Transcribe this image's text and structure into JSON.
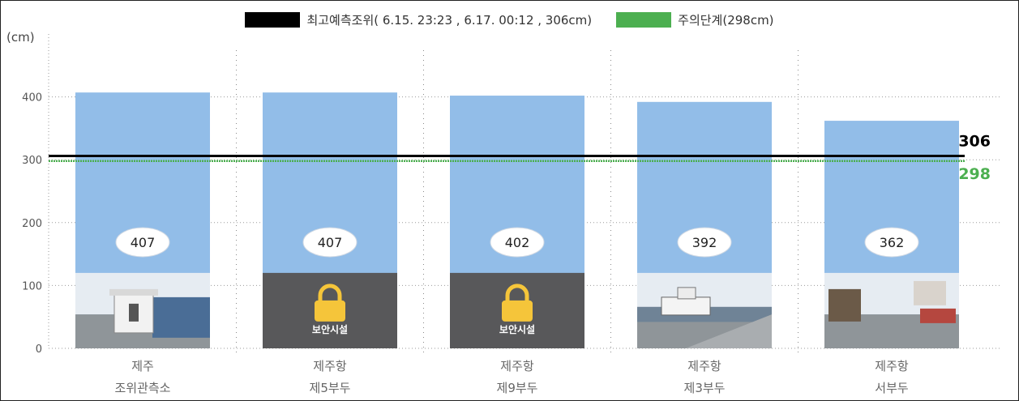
{
  "legend": {
    "max_label": "최고예측조위( 6.15. 23:23 , 6.17. 00:12 , 306cm)",
    "alert_label": "주의단계(298cm)",
    "max_color": "#000000",
    "alert_color": "#4caf50"
  },
  "axis_unit": "(cm)",
  "bar_color": "#92bde8",
  "secure_box_color": "#58585a",
  "lock_color": "#f5c53a",
  "chart_data": {
    "type": "bar",
    "categories": [
      [
        "제주",
        "조위관측소"
      ],
      [
        "제주항",
        "제5부두"
      ],
      [
        "제주항",
        "제9부두"
      ],
      [
        "제주항",
        "제3부두"
      ],
      [
        "제주항",
        "서부두"
      ]
    ],
    "values": [
      407,
      407,
      402,
      392,
      362
    ],
    "reference_lines": [
      {
        "name": "최고예측조위",
        "value": 306,
        "label": "306",
        "color": "#000000"
      },
      {
        "name": "주의단계",
        "value": 298,
        "label": "298",
        "color": "#4caf50"
      }
    ],
    "ylim": [
      0,
      500
    ],
    "yticks": [
      0,
      100,
      200,
      300,
      400
    ],
    "grid": "dotted",
    "legend_position": "top-center",
    "site_images": [
      "photo-tide-station",
      "secure-facility",
      "secure-facility",
      "photo-pier-boats",
      "photo-harbor-street"
    ],
    "secure_label": "보안시설"
  }
}
